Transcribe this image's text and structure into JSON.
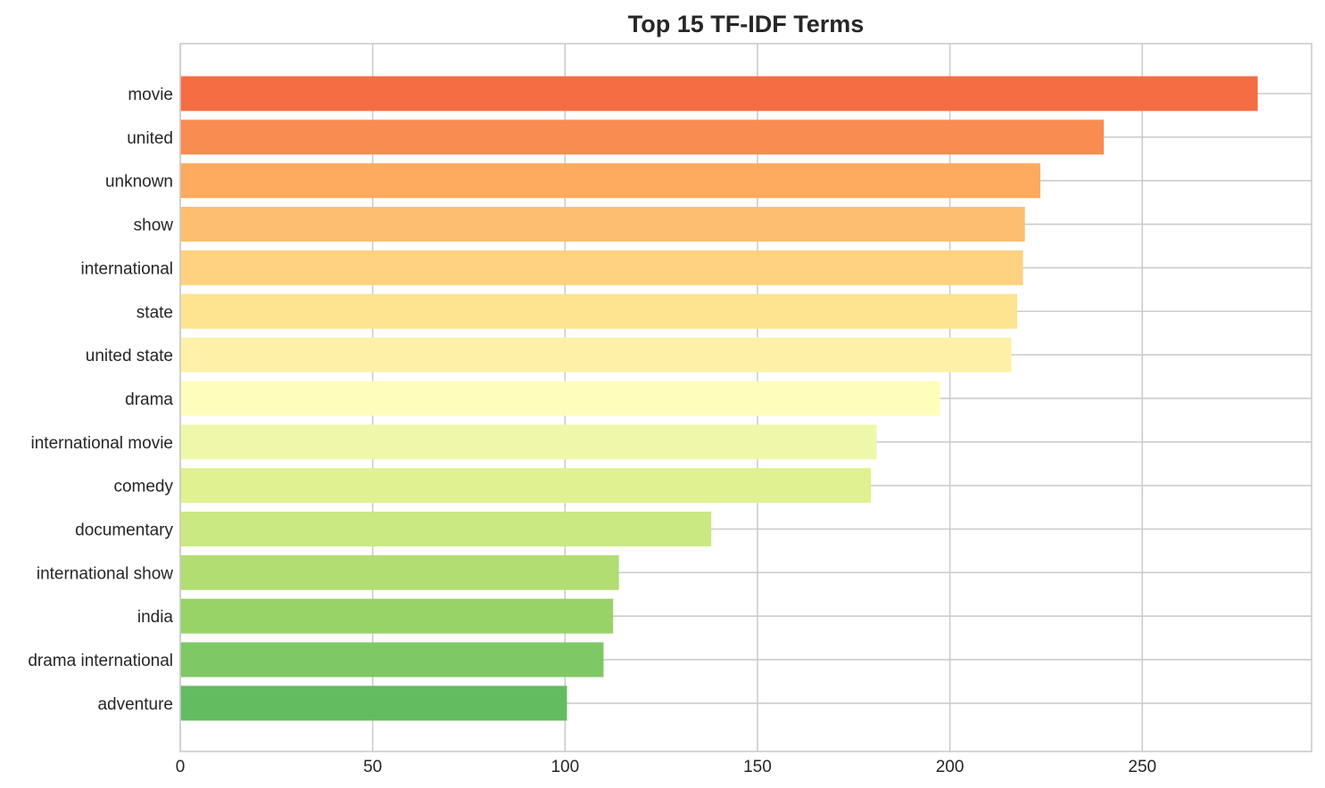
{
  "chart_data": {
    "type": "bar",
    "orientation": "horizontal",
    "title": "Top 15 TF-IDF Terms",
    "xlabel": "",
    "ylabel": "",
    "xlim": [
      0,
      294
    ],
    "x_ticks": [
      0,
      50,
      100,
      150,
      200,
      250
    ],
    "grid": true,
    "categories": [
      "movie",
      "united",
      "unknown",
      "show",
      "international",
      "state",
      "united state",
      "drama",
      "international movie",
      "comedy",
      "documentary",
      "international show",
      "india",
      "drama international",
      "adventure"
    ],
    "values": [
      280,
      240,
      223.5,
      219.5,
      219,
      217.5,
      216,
      197.5,
      181,
      179.5,
      138,
      114,
      112.5,
      110,
      100.5
    ],
    "colors": [
      "#f46d43",
      "#f88c51",
      "#fdaa5e",
      "#fdbf6f",
      "#fed180",
      "#fee391",
      "#fff1a8",
      "#fefdbc",
      "#eff8aa",
      "#dff190",
      "#cae982",
      "#b2dd73",
      "#98d367",
      "#7fc866",
      "#64bc61"
    ]
  }
}
